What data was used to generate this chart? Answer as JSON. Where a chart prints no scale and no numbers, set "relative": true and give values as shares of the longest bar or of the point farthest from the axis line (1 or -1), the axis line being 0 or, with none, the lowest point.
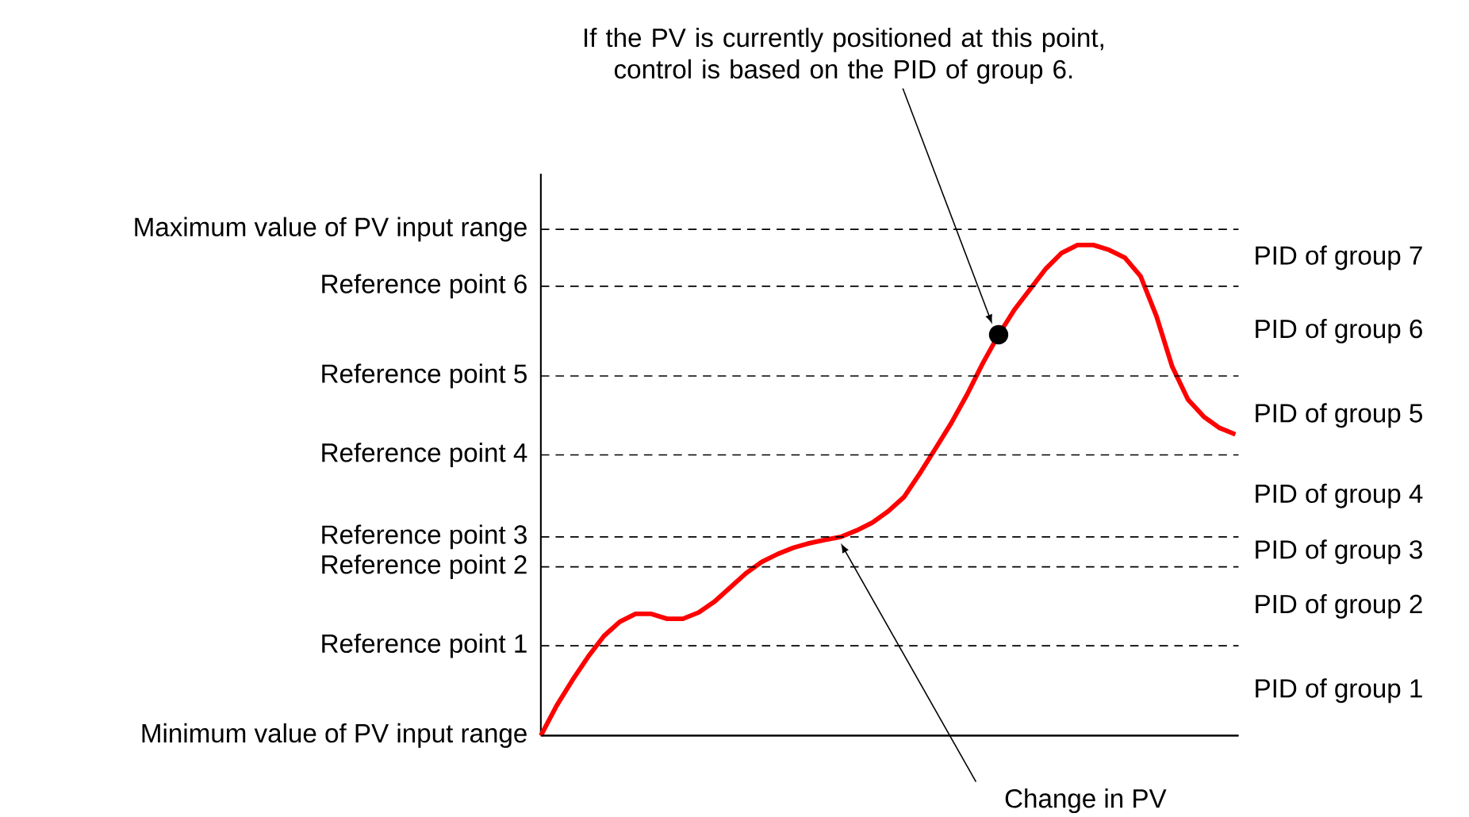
{
  "chart_data": {
    "type": "line",
    "relative": true,
    "line_style": "solid",
    "color": "#ff0000",
    "categories": [
      null,
      null,
      null,
      null,
      null,
      null,
      null,
      null,
      null,
      null,
      null,
      null,
      null,
      null,
      null,
      null,
      null,
      null,
      null,
      null,
      null,
      null,
      null,
      null,
      null,
      null,
      null,
      null,
      null,
      null,
      null,
      null,
      null,
      null,
      null,
      null,
      null,
      null,
      null,
      null,
      null,
      null,
      null,
      null,
      null
    ],
    "values": [
      0,
      0.061,
      0.113,
      0.161,
      0.203,
      0.232,
      0.248,
      0.248,
      0.238,
      0.238,
      0.251,
      0.273,
      0.302,
      0.331,
      0.354,
      0.37,
      0.383,
      0.392,
      0.399,
      0.405,
      0.418,
      0.434,
      0.457,
      0.486,
      0.534,
      0.585,
      0.637,
      0.695,
      0.759,
      0.817,
      0.868,
      0.91,
      0.952,
      0.984,
      1.0,
      1.0,
      0.99,
      0.974,
      0.936,
      0.855,
      0.752,
      0.685,
      0.65,
      0.627,
      0.614
    ],
    "ref_lines": [
      {
        "axis": "y",
        "value": 0,
        "label": "Minimum value of PV input range",
        "line_style": "solid"
      },
      {
        "axis": "y",
        "value": 0.183,
        "label": "Reference point 1",
        "line_style": "dashed"
      },
      {
        "axis": "y",
        "value": 0.344,
        "label": "Reference point 2",
        "line_style": "dashed"
      },
      {
        "axis": "y",
        "value": 0.405,
        "label": "Reference point 3",
        "line_style": "dashed"
      },
      {
        "axis": "y",
        "value": 0.572,
        "label": "Reference point 4",
        "line_style": "dashed"
      },
      {
        "axis": "y",
        "value": 0.733,
        "label": "Reference point 5",
        "line_style": "dashed"
      },
      {
        "axis": "y",
        "value": 0.916,
        "label": "Reference point 6",
        "line_style": "dashed"
      },
      {
        "axis": "y",
        "value": 1.032,
        "label": "Maximum value of PV input range",
        "line_style": "dashed"
      }
    ],
    "annotations": [
      "If the PV is currently positioned at this point, control is based on the PID of group 6.",
      "Change in PV",
      "PID of group 1",
      "PID of group 2",
      "PID of group 3",
      "PID of group 4",
      "PID of group 5",
      "PID of group 6",
      "PID of group 7"
    ]
  }
}
